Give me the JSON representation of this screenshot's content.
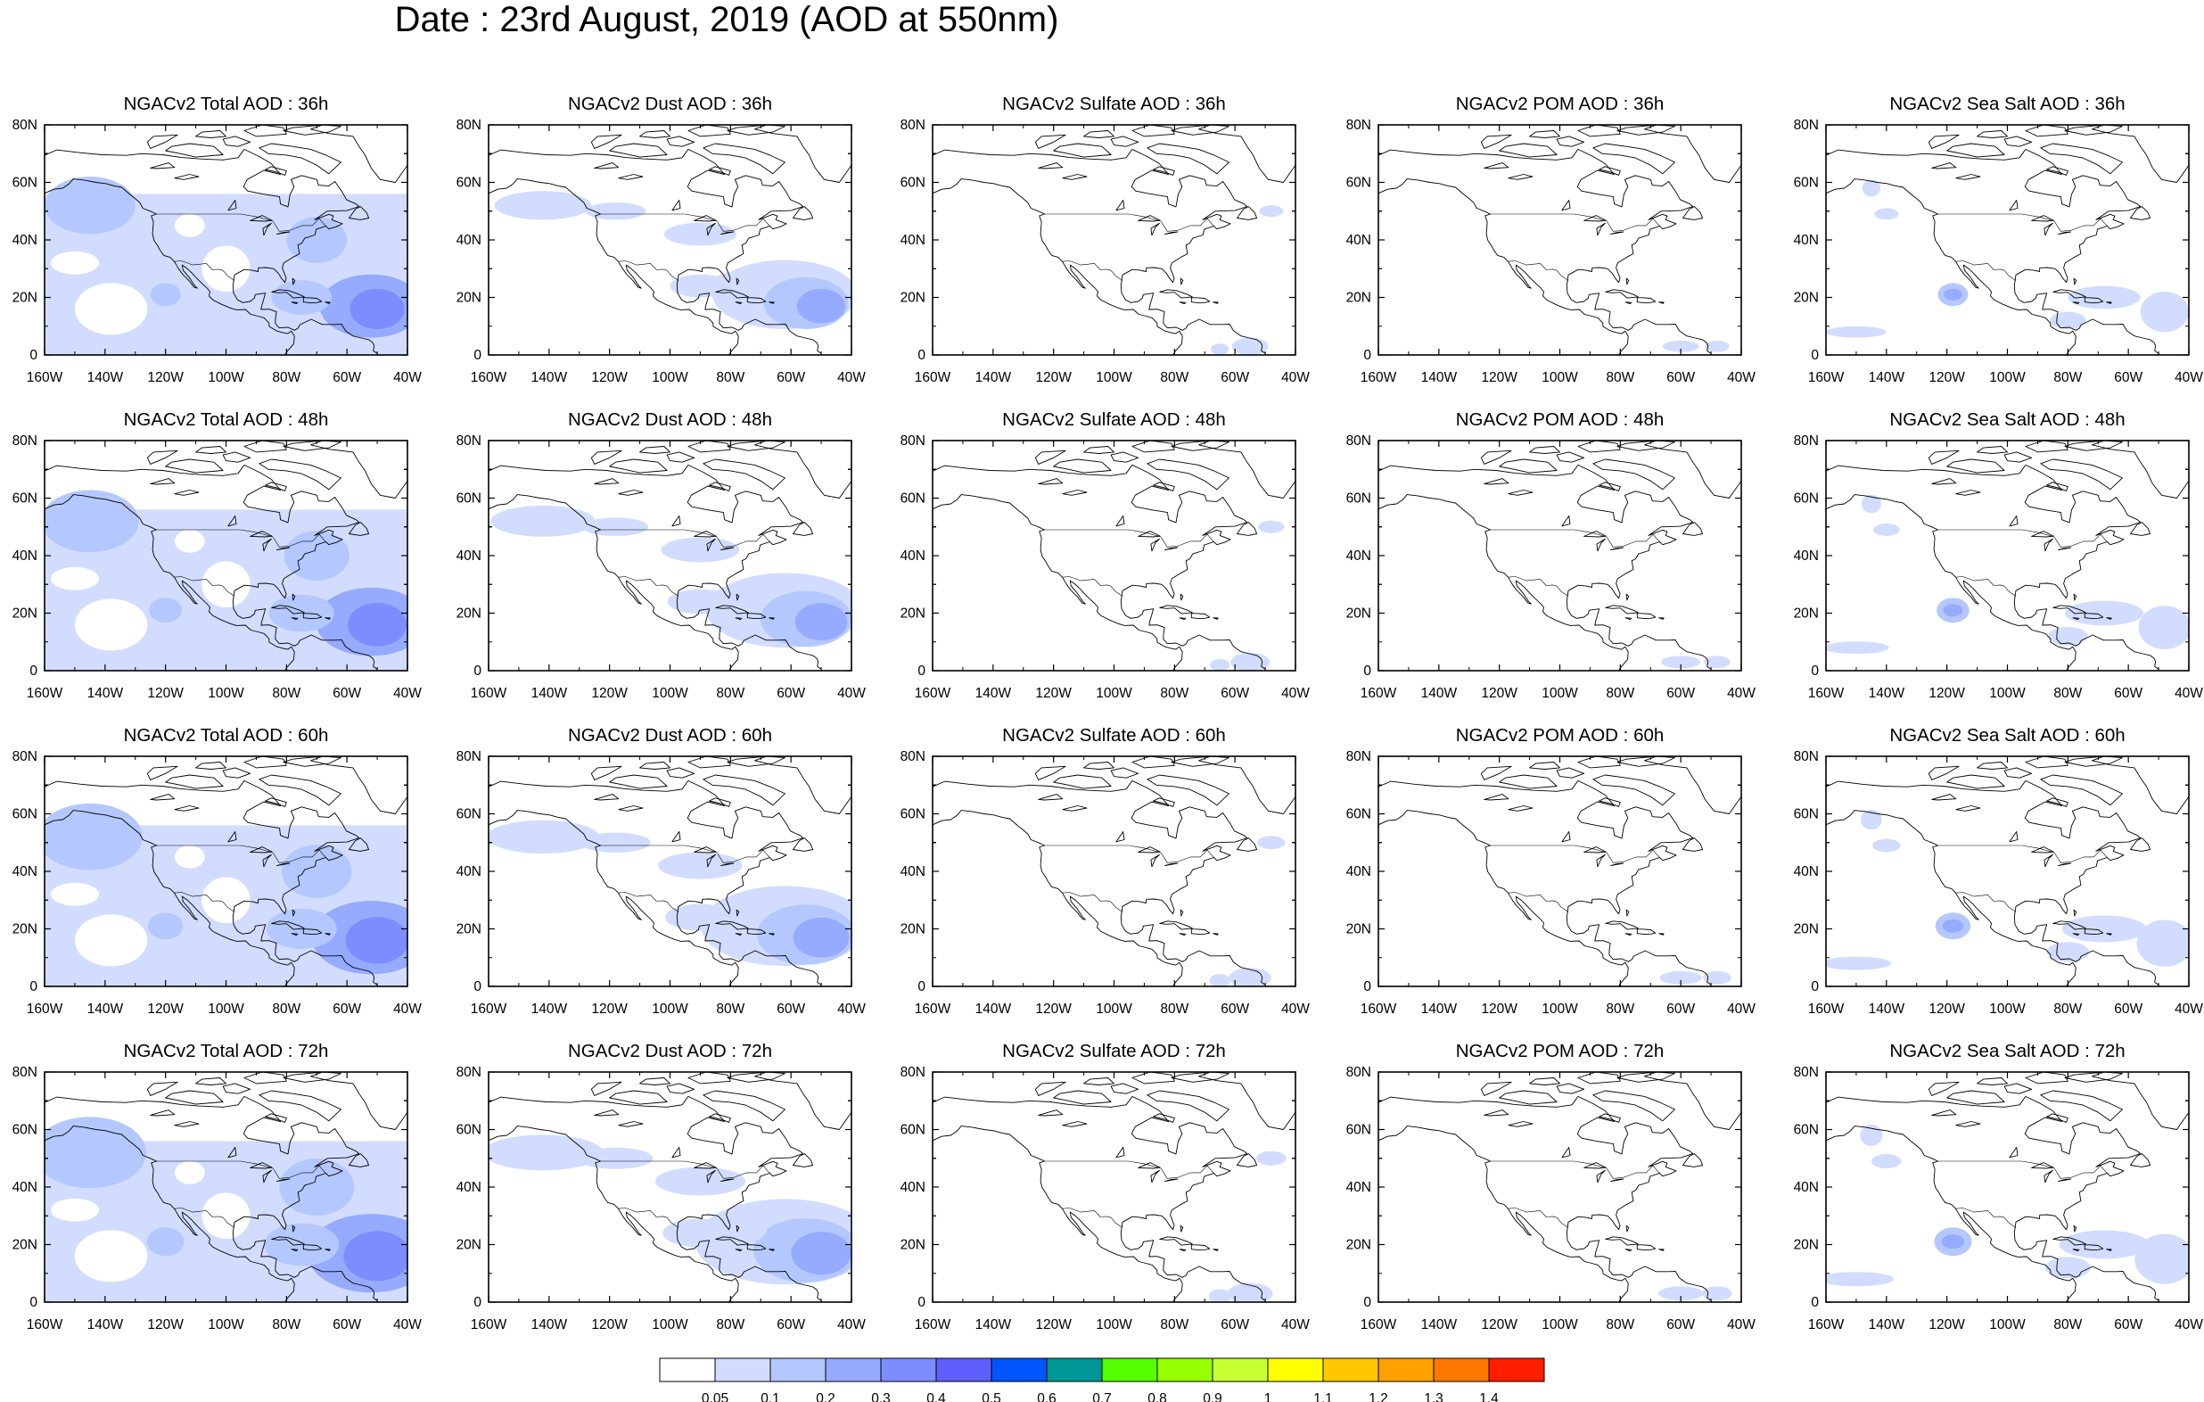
{
  "title": "Date : 23rd August, 2019 (AOD at 550nm)",
  "axes": {
    "lat_ticks": [
      "0",
      "20N",
      "40N",
      "60N",
      "80N"
    ],
    "lon_ticks": [
      "160W",
      "140W",
      "120W",
      "100W",
      "80W",
      "60W",
      "40W"
    ]
  },
  "panels": [
    [
      "NGACv2 Total AOD : 36h",
      "NGACv2 Dust AOD : 36h",
      "NGACv2 Sulfate AOD : 36h",
      "NGACv2 POM AOD : 36h",
      "NGACv2 Sea Salt AOD : 36h"
    ],
    [
      "NGACv2 Total AOD : 48h",
      "NGACv2 Dust AOD : 48h",
      "NGACv2 Sulfate AOD : 48h",
      "NGACv2 POM AOD : 48h",
      "NGACv2 Sea Salt AOD : 48h"
    ],
    [
      "NGACv2 Total AOD : 60h",
      "NGACv2 Dust AOD : 60h",
      "NGACv2 Sulfate AOD : 60h",
      "NGACv2 POM AOD : 60h",
      "NGACv2 Sea Salt AOD : 60h"
    ],
    [
      "NGACv2 Total AOD : 72h",
      "NGACv2 Dust AOD : 72h",
      "NGACv2 Sulfate AOD : 72h",
      "NGACv2 POM AOD : 72h",
      "NGACv2 Sea Salt  AOD : 72h"
    ]
  ],
  "colorbar": {
    "labels": [
      "0.05",
      "0.1",
      "0.2",
      "0.3",
      "0.4",
      "0.5",
      "0.6",
      "0.7",
      "0.8",
      "0.9",
      "1",
      "1.1",
      "1.2",
      "1.3",
      "1.4"
    ],
    "colors": [
      "#ffffff",
      "#d2dcff",
      "#b4c8ff",
      "#96aaff",
      "#7d8cff",
      "#5f5fff",
      "#0055ff",
      "#009696",
      "#55ff00",
      "#96ff00",
      "#c8ff32",
      "#ffff00",
      "#ffc800",
      "#ffa000",
      "#ff7800",
      "#ff1e00"
    ]
  },
  "colors": {
    "aod_light": "#d2dcff",
    "aod_mid": "#b4c8ff",
    "aod_strong": "#96aaff",
    "aod_peak": "#7d8cff"
  }
}
